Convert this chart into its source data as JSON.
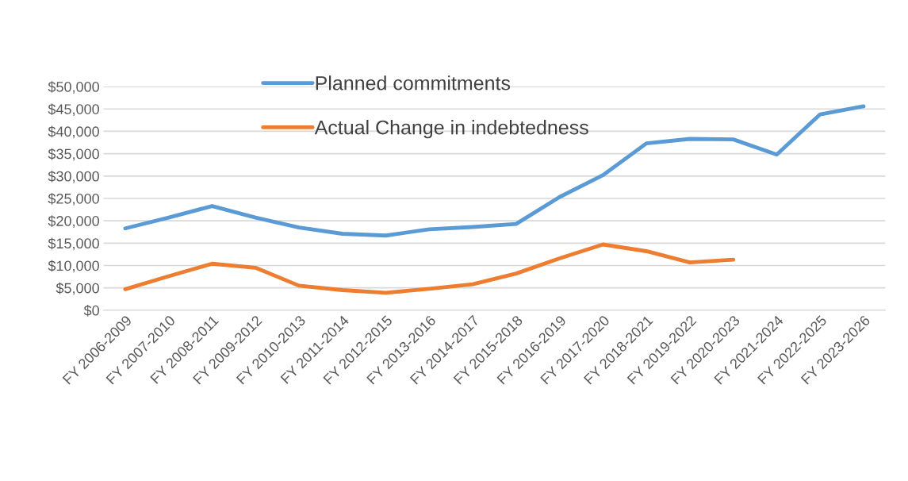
{
  "chart_data": {
    "type": "line",
    "categories": [
      "FY 2006-2009",
      "FY 2007-2010",
      "FY 2008-2011",
      "FY 2009-2012",
      "FY 2010-2013",
      "FY 2011-2014",
      "FY 2012-2015",
      "FY 2013-2016",
      "FY 2014-2017",
      "FY 2015-2018",
      "FY 2016-2019",
      "FY 2017-2020",
      "FY 2018-2021",
      "FY 2019-2022",
      "FY 2020-2023",
      "FY 2021-2024",
      "FY 2022-2025",
      "FY 2023-2026"
    ],
    "series": [
      {
        "name": "Planned commitments",
        "color": "#5b9bd5",
        "values": [
          18300,
          20700,
          23300,
          20700,
          18500,
          17100,
          16700,
          18100,
          18600,
          19300,
          25300,
          30200,
          37300,
          38300,
          38200,
          34800,
          43800,
          45600
        ]
      },
      {
        "name": "Actual Change in indebtedness",
        "color": "#ed7d31",
        "values": [
          4700,
          7600,
          10400,
          9500,
          5500,
          4500,
          3900,
          4800,
          5800,
          8200,
          11600,
          14700,
          13200,
          10700,
          11300,
          null,
          null,
          null
        ]
      }
    ],
    "ylim": [
      0,
      50000
    ],
    "yticks": [
      {
        "value": 0,
        "label": "$0"
      },
      {
        "value": 5000,
        "label": "$5,000"
      },
      {
        "value": 10000,
        "label": "$10,000"
      },
      {
        "value": 15000,
        "label": "$15,000"
      },
      {
        "value": 20000,
        "label": "$20,000"
      },
      {
        "value": 25000,
        "label": "$25,000"
      },
      {
        "value": 30000,
        "label": "$30,000"
      },
      {
        "value": 35000,
        "label": "$35,000"
      },
      {
        "value": 40000,
        "label": "$40,000"
      },
      {
        "value": 45000,
        "label": "$45,000"
      },
      {
        "value": 50000,
        "label": "$50,000"
      }
    ],
    "grid": "y",
    "legend": "top",
    "marker": "none",
    "line_style": "solid"
  }
}
